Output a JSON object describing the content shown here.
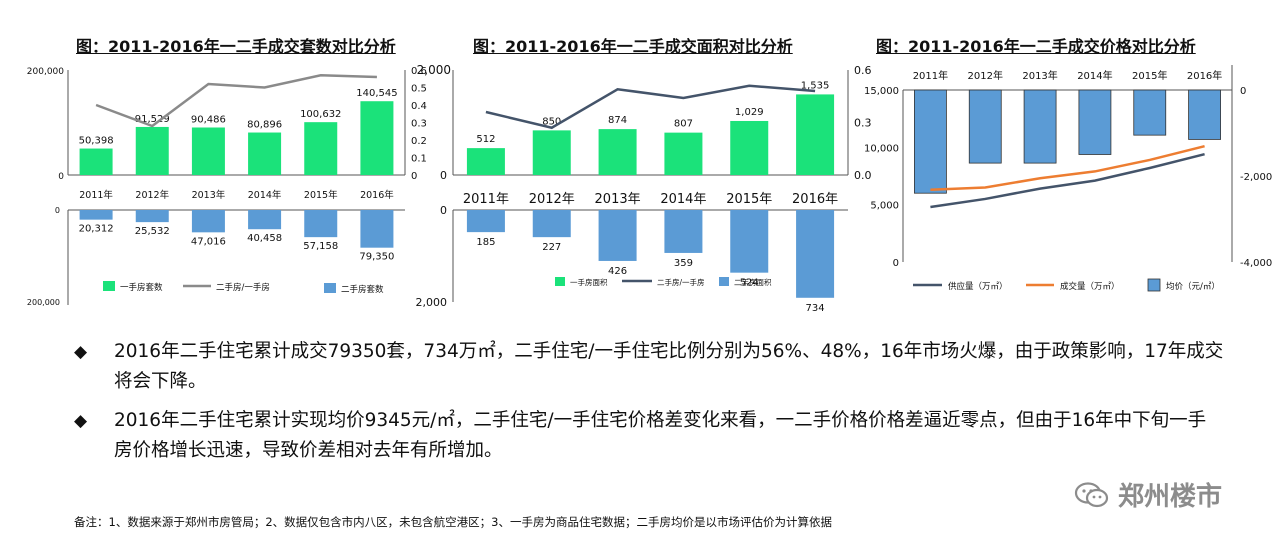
{
  "charts": {
    "count": {
      "title": "图：2011-2016年一二手成交套数对比分析",
      "years": [
        "2011年",
        "2012年",
        "2013年",
        "2014年",
        "2015年",
        "2016年"
      ],
      "new_values": [
        50398,
        91529,
        90486,
        80896,
        100632,
        140545
      ],
      "new_labels": [
        "50,398",
        "91,529",
        "90,486",
        "80,896",
        "100,632",
        "140,545"
      ],
      "second_values": [
        20312,
        25532,
        47016,
        40458,
        57158,
        79350
      ],
      "second_labels": [
        "20,312",
        "25,532",
        "47,016",
        "40,458",
        "57,158",
        "79,350"
      ],
      "ratio": [
        0.4,
        0.28,
        0.52,
        0.5,
        0.57,
        0.56
      ],
      "left_ticks_top": [
        "200,000",
        "0"
      ],
      "left_ticks_bottom": [
        "0",
        "200,000"
      ],
      "right_ticks": [
        "0.6",
        "0.5",
        "0.4",
        "0.3",
        "0.2",
        "0.1",
        "0"
      ],
      "legend": [
        "一手房套数",
        "二手房/一手房",
        "二手房套数"
      ]
    },
    "area": {
      "title": "图：2011-2016年一二手成交面积对比分析",
      "years": [
        "2011年",
        "2012年",
        "2013年",
        "2014年",
        "2015年",
        "2016年"
      ],
      "new_values": [
        512,
        850,
        874,
        807,
        1029,
        1535
      ],
      "new_labels": [
        "512",
        "850",
        "874",
        "807",
        "1,029",
        "1,535"
      ],
      "second_values": [
        185,
        227,
        426,
        359,
        524,
        734
      ],
      "second_labels": [
        "185",
        "227",
        "426",
        "359",
        "524",
        "734"
      ],
      "ratio": [
        0.36,
        0.27,
        0.49,
        0.44,
        0.51,
        0.48
      ],
      "left_ticks_top": [
        "2,000",
        "0"
      ],
      "left_ticks_bottom": [
        "0",
        "2,000"
      ],
      "right_ticks": [
        "0.6",
        "0.3",
        "0.0"
      ],
      "legend": [
        "一手房面积",
        "二手房/一手房",
        "二手房面积"
      ]
    },
    "price": {
      "title": "图：2011-2016年一二手成交价格对比分析",
      "years": [
        "2011年",
        "2012年",
        "2013年",
        "2014年",
        "2015年",
        "2016年"
      ],
      "supply": [
        4800,
        5500,
        6400,
        7100,
        8200,
        9400
      ],
      "deal": [
        6300,
        6500,
        7300,
        7900,
        8900,
        10100
      ],
      "diff": [
        -2400,
        -1700,
        -1700,
        -1500,
        -1050,
        -1150
      ],
      "left_ticks": [
        "15,000",
        "10,000",
        "5,000",
        "0"
      ],
      "right_ticks": [
        "0",
        "-2,000",
        "-4,000"
      ],
      "legend": [
        "供应量（万㎡）",
        "成交量（万㎡）",
        "均价（元/㎡）"
      ]
    }
  },
  "bullets": [
    "2016年二手住宅累计成交79350套，734万㎡，二手住宅/一手住宅比例分别为56%、48%，16年市场火爆，由于政策影响，17年成交将会下降。",
    "2016年二手住宅累计实现均价9345元/㎡，二手住宅/一手住宅价格差变化来看，一二手价格价格差逼近零点，但由于16年中下旬一手房价格增长迅速，导致价差相对去年有所增加。"
  ],
  "bullet_symbol": "◆",
  "footnote": "备注：1、数据来源于郑州市房管局；2、数据仅包含市内八区，未包含航空港区；3、一手房为商品住宅数据；二手房均价是以市场评估价为计算依据",
  "watermark": "郑州楼市",
  "colors": {
    "green": "#1be27a",
    "blue": "#5b9bd5",
    "gray_line": "#8a8a8a",
    "dark_line": "#44546a",
    "orange_line": "#ed7d31"
  }
}
